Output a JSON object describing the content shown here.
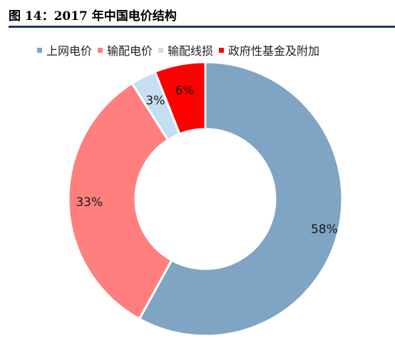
{
  "figure": {
    "title": "图 14：2017 年中国电价结构"
  },
  "chart_data": {
    "type": "donut",
    "title": "",
    "legend_position": "top",
    "series": [
      {
        "name": "上网电价",
        "value": 58,
        "label": "58%",
        "color": "#7fa4c4"
      },
      {
        "name": "输配电价",
        "value": 33,
        "label": "33%",
        "color": "#ff7f7f"
      },
      {
        "name": "输配线损",
        "value": 3,
        "label": "3%",
        "color": "#c6def1"
      },
      {
        "name": "政府性基金及附加",
        "value": 6,
        "label": "6%",
        "color": "#ff0000"
      }
    ]
  }
}
